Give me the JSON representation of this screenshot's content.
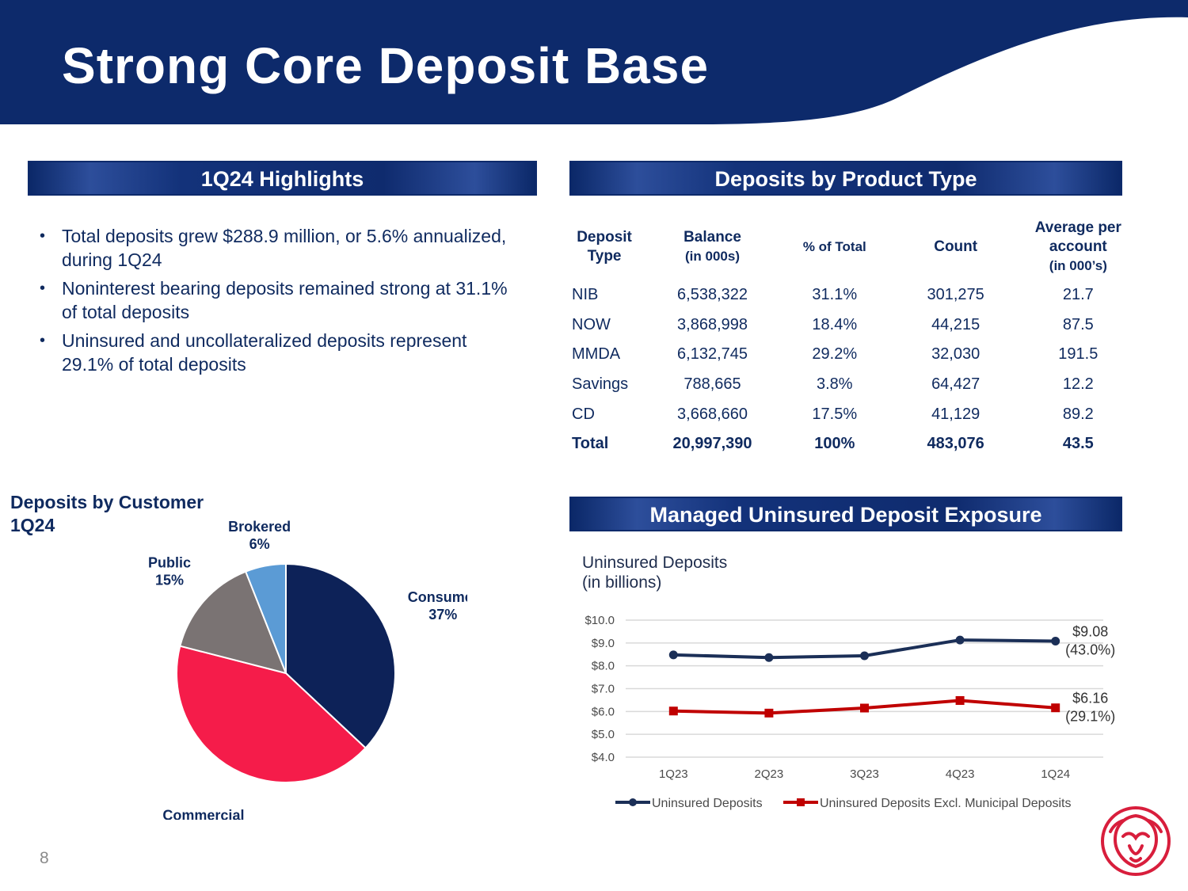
{
  "page": {
    "title": "Strong Core Deposit Base",
    "number": "8"
  },
  "highlights": {
    "header": "1Q24 Highlights",
    "bullets": [
      "Total deposits grew $288.9 million, or 5.6% annualized, during 1Q24",
      "Noninterest bearing deposits remained strong at 31.1% of total deposits",
      "Uninsured and uncollateralized deposits represent 29.1% of total deposits"
    ]
  },
  "product_table": {
    "header": "Deposits by Product Type",
    "columns": {
      "type_l1": "Deposit",
      "type_l2": "Type",
      "balance_l1": "Balance",
      "balance_l2": "(in 000s)",
      "pct": "% of Total",
      "count": "Count",
      "avg_l1": "Average per",
      "avg_l2": "account",
      "avg_l3": "(in 000’s)"
    },
    "rows": [
      {
        "type": "NIB",
        "balance": "6,538,322",
        "pct": "31.1%",
        "count": "301,275",
        "avg": "21.7"
      },
      {
        "type": "NOW",
        "balance": "3,868,998",
        "pct": "18.4%",
        "count": "44,215",
        "avg": "87.5"
      },
      {
        "type": "MMDA",
        "balance": "6,132,745",
        "pct": "29.2%",
        "count": "32,030",
        "avg": "191.5"
      },
      {
        "type": "Savings",
        "balance": "788,665",
        "pct": "3.8%",
        "count": "64,427",
        "avg": "12.2"
      },
      {
        "type": "CD",
        "balance": "3,668,660",
        "pct": "17.5%",
        "count": "41,129",
        "avg": "89.2"
      }
    ],
    "total": {
      "type": "Total",
      "balance": "20,997,390",
      "pct": "100%",
      "count": "483,076",
      "avg": "43.5"
    }
  },
  "pie": {
    "title_l1": "Deposits by Customer",
    "title_l2": "1Q24"
  },
  "line_section": {
    "header": "Managed Uninsured Deposit Exposure",
    "note_l1": "Uninsured Deposits",
    "note_l2": "(in billions)"
  },
  "chart_data": [
    {
      "type": "pie",
      "title": "Deposits by Customer 1Q24",
      "slices": [
        {
          "name": "Consumer",
          "value": 37,
          "label": "37%",
          "color": "#0d2258"
        },
        {
          "name": "Commercial",
          "value": 42,
          "label": "42%",
          "color": "#f51c4a"
        },
        {
          "name": "Public",
          "value": 15,
          "label": "15%",
          "color": "#7a7373"
        },
        {
          "name": "Brokered",
          "value": 6,
          "label": "6%",
          "color": "#5b9bd5"
        }
      ]
    },
    {
      "type": "line",
      "title": "Uninsured Deposits (in billions)",
      "categories": [
        "1Q23",
        "2Q23",
        "3Q23",
        "4Q23",
        "1Q24"
      ],
      "ylim": [
        4.0,
        10.0
      ],
      "yticks": [
        "$4.0",
        "$5.0",
        "$6.0",
        "$7.0",
        "$8.0",
        "$9.0",
        "$10.0"
      ],
      "series": [
        {
          "name": "Uninsured Deposits",
          "values": [
            8.48,
            8.36,
            8.44,
            9.13,
            9.08
          ],
          "color": "#1b2f57",
          "marker": "circle",
          "end_label_l1": "$9.08",
          "end_label_l2": "(43.0%)"
        },
        {
          "name": "Uninsured Deposits Excl. Municipal Deposits",
          "values": [
            6.02,
            5.93,
            6.15,
            6.48,
            6.16
          ],
          "color": "#c00000",
          "marker": "square",
          "end_label_l1": "$6.16",
          "end_label_l2": "(29.1%)"
        }
      ]
    }
  ]
}
